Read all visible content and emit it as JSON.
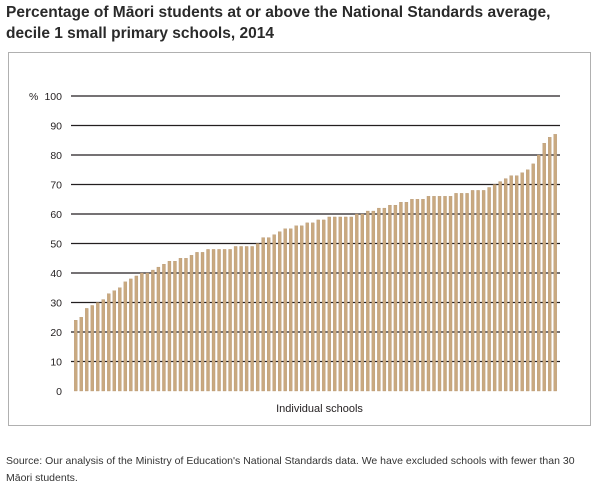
{
  "title": {
    "line1": "Percentage of Māori students at or above the National Standards average,",
    "line2": "decile 1 small primary schools, 2014"
  },
  "source_note": "Source: Our analysis of the Ministry of Education's National Standards data. We have excluded schools with fewer than 30 Māori students.",
  "colors": {
    "bar": "#c9a980",
    "bar_edge": "#ad8b63",
    "gridline": "#231f20",
    "frame": "#b0b0b0"
  },
  "chart_data": {
    "type": "bar",
    "title": "Percentage of Māori students at or above the National Standards average, decile 1 small primary schools, 2014",
    "xlabel": "Individual schools",
    "ylabel": "%",
    "ylim": [
      0,
      100
    ],
    "yticks": [
      0,
      10,
      20,
      30,
      40,
      50,
      60,
      70,
      80,
      90,
      100
    ],
    "grid": true,
    "values": [
      24,
      25,
      28,
      29,
      30,
      31,
      33,
      34,
      35,
      37,
      38,
      39,
      40,
      40,
      41,
      42,
      43,
      44,
      44,
      45,
      45,
      46,
      47,
      47,
      48,
      48,
      48,
      48,
      48,
      49,
      49,
      49,
      49,
      50,
      52,
      52,
      53,
      54,
      55,
      55,
      56,
      56,
      57,
      57,
      58,
      58,
      59,
      59,
      59,
      59,
      59,
      60,
      60,
      61,
      61,
      62,
      62,
      63,
      63,
      64,
      64,
      65,
      65,
      65,
      66,
      66,
      66,
      66,
      66,
      67,
      67,
      67,
      68,
      68,
      68,
      69,
      70,
      71,
      72,
      73,
      73,
      74,
      75,
      77,
      80,
      84,
      86,
      87
    ]
  }
}
